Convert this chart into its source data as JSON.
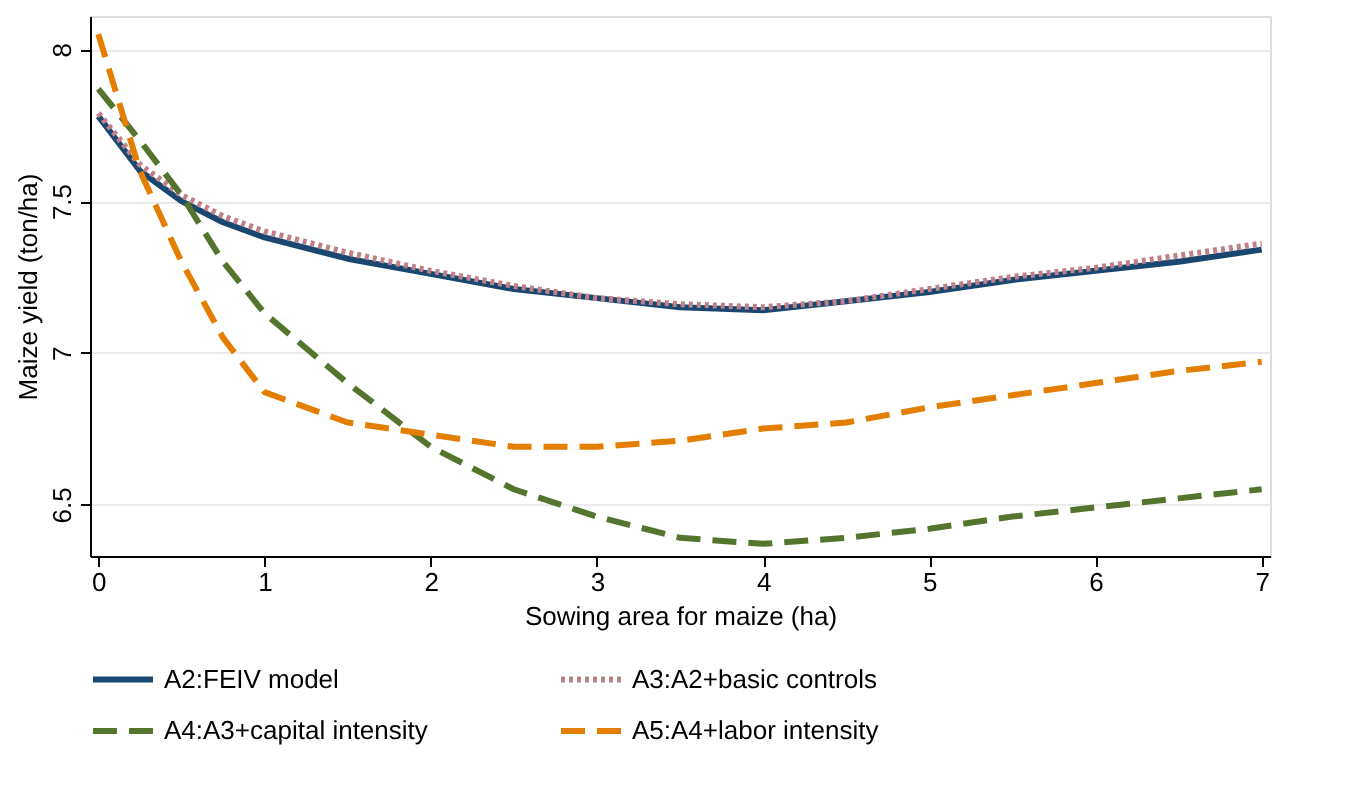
{
  "chart_data": {
    "type": "line",
    "xlabel": "Sowing area for maize (ha)",
    "ylabel": "Maize yield (ton/ha)",
    "x": [
      0,
      0.25,
      0.5,
      0.75,
      1,
      1.5,
      2,
      2.5,
      3,
      3.5,
      4,
      4.5,
      5,
      5.5,
      6,
      6.5,
      7
    ],
    "series": [
      {
        "name": "A2:FEIV model",
        "color": "#1a476f",
        "line_style": "solid",
        "values": [
          7.78,
          7.6,
          7.5,
          7.43,
          7.38,
          7.31,
          7.26,
          7.21,
          7.18,
          7.15,
          7.14,
          7.17,
          7.2,
          7.24,
          7.27,
          7.3,
          7.34
        ]
      },
      {
        "name": "A3:A2+basic controls",
        "color": "#c0808a",
        "line_style": "dotted",
        "values": [
          7.79,
          7.62,
          7.52,
          7.45,
          7.4,
          7.33,
          7.27,
          7.22,
          7.18,
          7.16,
          7.15,
          7.17,
          7.21,
          7.25,
          7.28,
          7.32,
          7.36
        ]
      },
      {
        "name": "A4:A3+capital intensity",
        "color": "#55752f",
        "line_style": "dashed",
        "values": [
          7.87,
          7.7,
          7.52,
          7.3,
          7.13,
          6.9,
          6.69,
          6.55,
          6.46,
          6.39,
          6.37,
          6.39,
          6.42,
          6.46,
          6.49,
          6.52,
          6.55
        ]
      },
      {
        "name": "A5:A4+labor intensity",
        "color": "#e37e00",
        "line_style": "dashed",
        "values": [
          8.05,
          7.6,
          7.3,
          7.05,
          6.87,
          6.77,
          6.73,
          6.69,
          6.69,
          6.71,
          6.75,
          6.77,
          6.82,
          6.86,
          6.9,
          6.94,
          6.97
        ]
      }
    ],
    "xlim": [
      -0.05,
      7.05
    ],
    "xticks": [
      0,
      1,
      2,
      3,
      4,
      5,
      6,
      7
    ],
    "ylim": [
      6.33,
      8.11
    ],
    "yticks": [
      6.5,
      7,
      7.5,
      8
    ],
    "grid": "y",
    "legend": "bottom"
  }
}
